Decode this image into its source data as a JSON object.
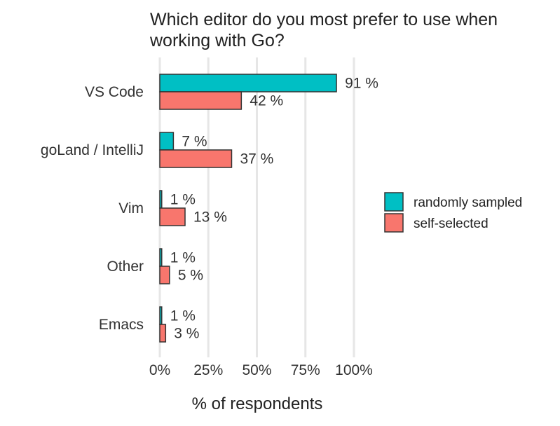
{
  "chart_data": {
    "type": "bar",
    "orientation": "horizontal",
    "title_lines": [
      "Which editor do you most prefer to use when",
      "working with Go?"
    ],
    "xlabel": "% of respondents",
    "ylabel": "",
    "categories": [
      "VS Code",
      "goLand / IntelliJ",
      "Vim",
      "Other",
      "Emacs"
    ],
    "series": [
      {
        "name": "randomly sampled",
        "color": "#00BFC4",
        "values": [
          91,
          7,
          1,
          1,
          1
        ],
        "labels": [
          "91 %",
          "7 %",
          "1 %",
          "1 %",
          "1 %"
        ]
      },
      {
        "name": "self-selected",
        "color": "#F8766D",
        "values": [
          42,
          37,
          13,
          5,
          3
        ],
        "labels": [
          "42 %",
          "37 %",
          "13 %",
          "5 %",
          "3 %"
        ]
      }
    ],
    "xlim": [
      0,
      100
    ],
    "xticks": [
      0,
      25,
      50,
      75,
      100
    ],
    "xtick_labels": [
      "0%",
      "25%",
      "50%",
      "75%",
      "100%"
    ],
    "grid": true,
    "legend_position": "right"
  }
}
